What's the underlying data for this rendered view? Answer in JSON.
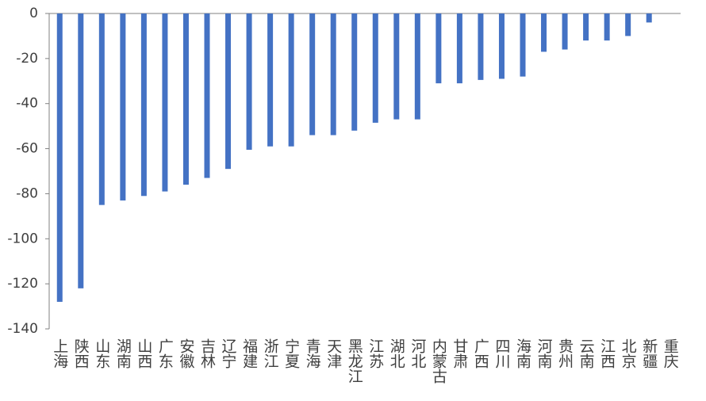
{
  "chart_data": {
    "type": "bar",
    "categories": [
      "上海",
      "陕西",
      "山东",
      "湖南",
      "山西",
      "广东",
      "安徽",
      "吉林",
      "辽宁",
      "福建",
      "浙江",
      "宁夏",
      "青海",
      "天津",
      "黑龙江",
      "江苏",
      "湖北",
      "河北",
      "内蒙古",
      "甘肃",
      "广西",
      "四川",
      "海南",
      "河南",
      "贵州",
      "云南",
      "江西",
      "北京",
      "新疆",
      "重庆"
    ],
    "values": [
      -128,
      -122,
      -85,
      -83,
      -81,
      -79,
      -76,
      -73,
      -69,
      -60.5,
      -59,
      -59,
      -54,
      -54,
      -52,
      -48.5,
      -47,
      -47,
      -31,
      -31,
      -29.5,
      -29,
      -28,
      -17,
      -16,
      -12,
      -12,
      -10,
      -4,
      0
    ],
    "color": "#4472c4",
    "ylim": [
      -140,
      0
    ],
    "yticks": [
      0,
      -20,
      -40,
      -60,
      -80,
      -100,
      -120,
      -140
    ],
    "grid": false
  }
}
